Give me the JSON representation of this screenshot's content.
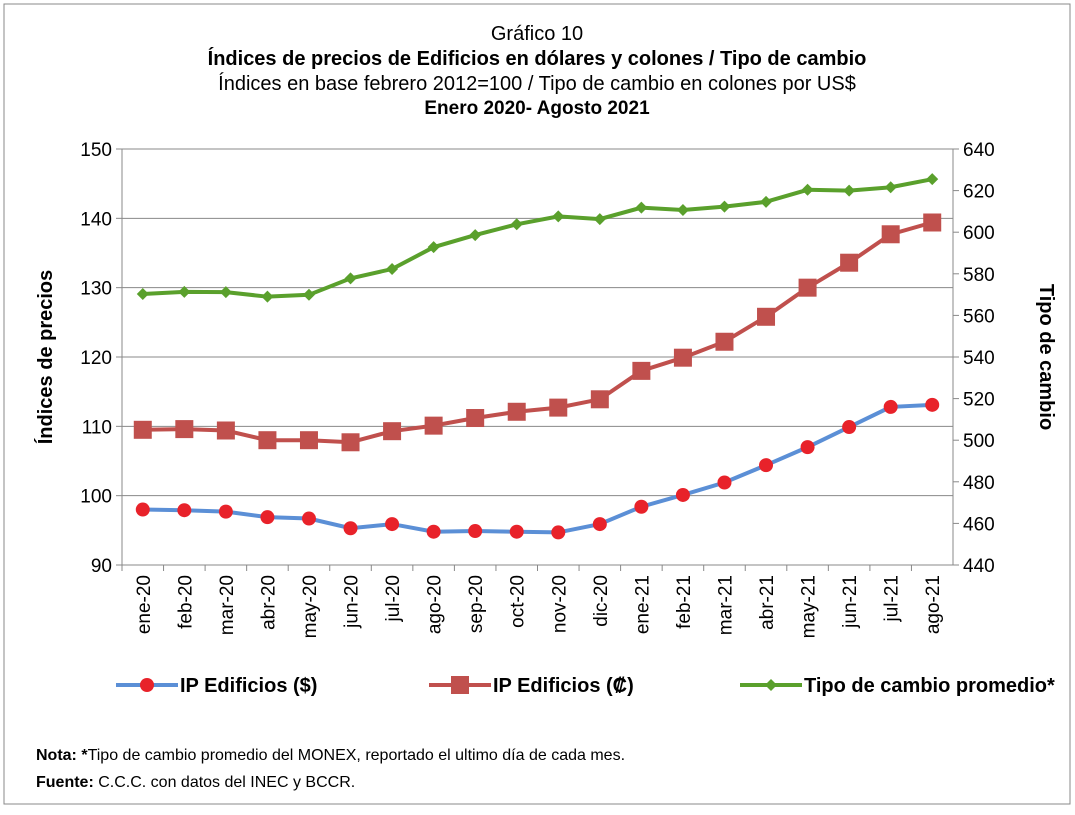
{
  "chart_data": {
    "type": "line",
    "title": "Gráfico 10",
    "subtitle": "Índices de precios de Edificios en dólares y colones / Tipo de cambio",
    "subtitle2": "Índices en base febrero 2012=100 / Tipo de cambio en colones por US$",
    "period": "Enero 2020- Agosto 2021",
    "y_label": "Índices de precios",
    "y2_label": "Tipo de cambio",
    "categories": [
      "ene-20",
      "feb-20",
      "mar-20",
      "abr-20",
      "may-20",
      "jun-20",
      "jul-20",
      "ago-20",
      "sep-20",
      "oct-20",
      "nov-20",
      "dic-20",
      "ene-21",
      "feb-21",
      "mar-21",
      "abr-21",
      "may-21",
      "jun-21",
      "jul-21",
      "ago-21"
    ],
    "series": [
      {
        "name": "IP Edificios ($)",
        "color": "#5b8fd6",
        "marker": "circle",
        "marker_color": "#e8222a",
        "values": [
          98.0,
          97.9,
          97.7,
          96.9,
          96.7,
          95.3,
          95.9,
          94.8,
          94.9,
          94.8,
          94.7,
          95.9,
          98.4,
          100.1,
          101.9,
          104.4,
          107.0,
          109.9,
          112.8,
          113.1
        ]
      },
      {
        "name": "IP Edificios (₡)",
        "color": "#c0504d",
        "marker": "square",
        "marker_color": "#c0504d",
        "values": [
          109.5,
          109.6,
          109.4,
          108.0,
          108.0,
          107.7,
          109.3,
          110.1,
          111.2,
          112.1,
          112.7,
          113.9,
          118.0,
          119.9,
          122.2,
          125.8,
          130.0,
          133.6,
          137.7,
          139.4
        ]
      },
      {
        "name": "Tipo de cambio promedio*",
        "color": "#5aa02c",
        "marker": "diamond",
        "marker_color": "#5aa02c",
        "axis": "y2",
        "values": [
          570.3,
          571.3,
          571.2,
          569.0,
          569.9,
          577.8,
          582.3,
          592.8,
          598.6,
          603.8,
          607.6,
          606.3,
          611.8,
          610.7,
          612.3,
          614.6,
          620.4,
          620.0,
          621.6,
          625.5
        ]
      }
    ],
    "ylim": [
      90,
      150
    ],
    "yticks": [
      90,
      100,
      110,
      120,
      130,
      140,
      150
    ],
    "y2lim": [
      440,
      640
    ],
    "y2ticks": [
      440,
      460,
      480,
      500,
      520,
      540,
      560,
      580,
      600,
      620,
      640
    ],
    "grid": true,
    "legend": "bottom"
  },
  "notes": {
    "nota_label": "Nota: *",
    "nota_text": "Tipo de cambio promedio del MONEX, reportado el ultimo día de cada mes.",
    "fuente_label": "Fuente:",
    "fuente_text": " C.C.C. con datos del INEC y BCCR."
  }
}
